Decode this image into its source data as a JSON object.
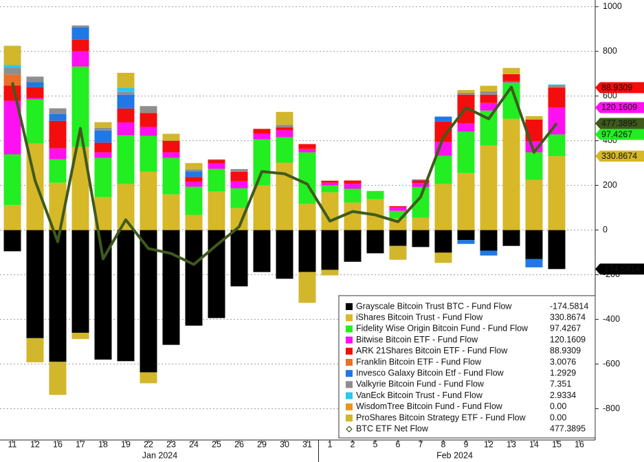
{
  "chart_data": {
    "type": "bar",
    "stacked": true,
    "categories": [
      "11",
      "12",
      "16",
      "17",
      "18",
      "19",
      "22",
      "23",
      "24",
      "25",
      "26",
      "29",
      "30",
      "31",
      "1",
      "2",
      "5",
      "6",
      "7",
      "8",
      "9",
      "12",
      "13",
      "14",
      "15",
      "16"
    ],
    "month_labels": [
      {
        "label": "Jan 2024",
        "from": 0,
        "to": 13
      },
      {
        "label": "Feb 2024",
        "from": 14,
        "to": 25
      }
    ],
    "ylim": [
      -940,
      1030
    ],
    "yticks": [
      -800,
      -600,
      -400,
      -200,
      0,
      200,
      400,
      600,
      800,
      1000
    ],
    "grid": true,
    "series": [
      {
        "name": "Grayscale Bitcoin Trust BTC - Fund Flow",
        "color": "#000000",
        "value_label": "-174.5814",
        "right_tag": true,
        "tag_text": "#ffffff",
        "values": [
          -95,
          -484,
          -590,
          -460,
          -580,
          -587,
          -637,
          -514,
          -428,
          -394,
          -252,
          -188,
          -218,
          -188,
          -178,
          -142,
          -104,
          -71,
          -76,
          -101,
          -45,
          -92,
          -71,
          -130,
          -174.5814,
          null
        ]
      },
      {
        "name": "iShares Bitcoin Trust - Fund Flow",
        "color": "#d6b828",
        "value_label": "330.8674",
        "right_tag": true,
        "tag_text": "#111111",
        "values": [
          112,
          388,
          212,
          372,
          148,
          206,
          262,
          160,
          68,
          172,
          98,
          200,
          302,
          117,
          169,
          123,
          138,
          52,
          55,
          206,
          255,
          378,
          498,
          225,
          330.8674,
          null
        ]
      },
      {
        "name": "Fidelity Wise Origin Bitcoin Fund - Fund Flow",
        "color": "#22ee22",
        "value_label": "97.4267",
        "right_tag": true,
        "tag_text": "#1a3a1a",
        "values": [
          227,
          197,
          105,
          360,
          175,
          218,
          160,
          163,
          126,
          102,
          89,
          206,
          114,
          231,
          31,
          62,
          37,
          34,
          138,
          126,
          185,
          157,
          163,
          123,
          97.4267,
          null
        ]
      },
      {
        "name": "Bitwise Bitcoin ETF - Fund Flow",
        "color": "#ff10f0",
        "value_label": "120.1609",
        "right_tag": true,
        "tag_text": "#ffffff",
        "values": [
          240,
          6,
          49,
          68,
          25,
          58,
          40,
          25,
          22,
          25,
          31,
          25,
          31,
          15,
          12,
          22,
          0,
          15,
          18,
          62,
          37,
          34,
          6,
          49,
          120.1609,
          null
        ]
      },
      {
        "name": "ARK 21Shares Bitcoin ETF - Fund Flow",
        "color": "#f40d0d",
        "value_label": "88.9309",
        "right_tag": true,
        "tag_text": "#ffffff",
        "values": [
          68,
          49,
          123,
          52,
          43,
          62,
          62,
          52,
          22,
          15,
          43,
          22,
          12,
          22,
          9,
          15,
          0,
          6,
          12,
          92,
          129,
          37,
          31,
          98,
          88.9309,
          null
        ]
      },
      {
        "name": "Franklin Bitcoin ETF - Fund Flow",
        "color": "#e8702a",
        "value_label": "3.0076",
        "right_tag": false,
        "values": [
          50,
          0,
          0,
          0,
          0,
          0,
          0,
          0,
          0,
          0,
          0,
          0,
          0,
          0,
          0,
          0,
          0,
          0,
          0,
          0,
          0,
          0,
          0,
          0,
          3.0076,
          null
        ]
      },
      {
        "name": "Invesco Galaxy Bitcoin Etf - Fund Flow",
        "color": "#1f78e6",
        "value_label": "1.2929",
        "right_tag": false,
        "values": [
          0,
          22,
          31,
          55,
          55,
          62,
          0,
          0,
          25,
          0,
          0,
          0,
          0,
          0,
          0,
          0,
          0,
          0,
          3,
          22,
          -17,
          -22,
          0,
          -37,
          1.2929,
          null
        ]
      },
      {
        "name": "Valkyrie Bitcoin Fund - Fund Flow",
        "color": "#8e8e8e",
        "value_label": "7.351",
        "right_tag": false,
        "values": [
          30,
          25,
          25,
          9,
          12,
          12,
          31,
          0,
          9,
          3,
          12,
          0,
          12,
          0,
          0,
          0,
          0,
          0,
          0,
          0,
          9,
          15,
          0,
          0,
          7.351,
          null
        ]
      },
      {
        "name": "VanEck Bitcoin Trust - Fund Flow",
        "color": "#2cc6f0",
        "value_label": "2.9334",
        "right_tag": false,
        "values": [
          12,
          0,
          0,
          0,
          0,
          18,
          0,
          0,
          0,
          0,
          0,
          0,
          0,
          0,
          0,
          0,
          0,
          0,
          0,
          0,
          0,
          0,
          0,
          0,
          2.9334,
          null
        ]
      },
      {
        "name": "WisdomTree Bitcoin Fund - Fund Flow",
        "color": "#e8961e",
        "value_label": "0.00",
        "right_tag": false,
        "values": [
          0,
          0,
          0,
          0,
          0,
          0,
          0,
          0,
          0,
          0,
          0,
          0,
          0,
          0,
          0,
          0,
          0,
          0,
          0,
          0,
          0,
          0,
          0,
          0,
          0,
          null
        ]
      },
      {
        "name": "ProShares Bitcoin Strategy ETF - Fund Flow",
        "color": "#d2b62c",
        "value_label": "0.00",
        "right_tag": false,
        "values": [
          86,
          -108,
          -148,
          -28,
          25,
          68,
          -49,
          31,
          28,
          0,
          0,
          0,
          58,
          -138,
          -25,
          0,
          0,
          -62,
          0,
          -46,
          12,
          25,
          28,
          15,
          0,
          null
        ]
      }
    ],
    "line": {
      "name": "BTC ETF Net Flow",
      "color": "#3f5a1c",
      "value_label": "477.3895",
      "right_tag": true,
      "tag_text": "#ffffff",
      "values": [
        661,
        222,
        -52,
        455,
        -129,
        46,
        -83,
        -105,
        -154,
        -68,
        15,
        262,
        252,
        206,
        40,
        83,
        68,
        37,
        148,
        415,
        548,
        498,
        640,
        348,
        477.3895,
        null
      ]
    }
  }
}
